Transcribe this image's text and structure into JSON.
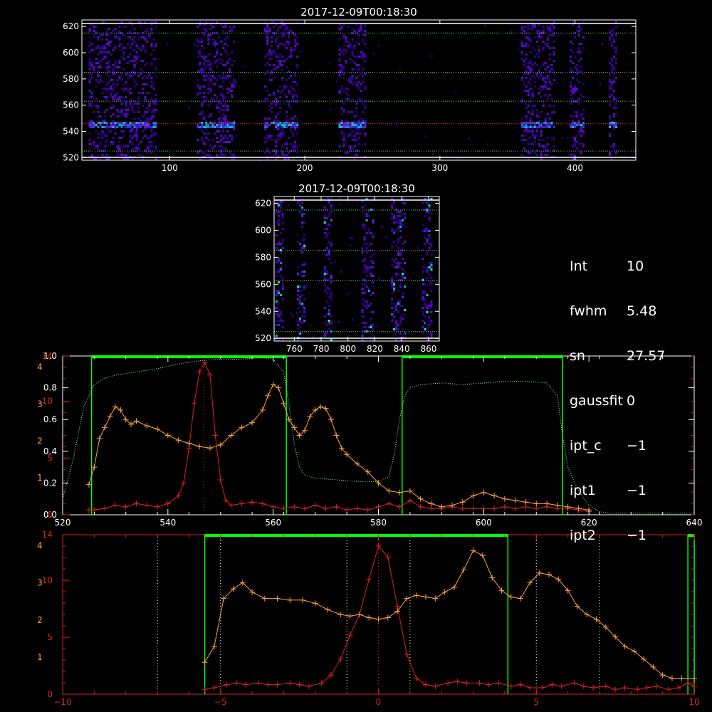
{
  "params": [
    {
      "key": "Int",
      "value": "10"
    },
    {
      "key": "fwhm",
      "value": "5.48"
    },
    {
      "key": "sn",
      "value": "27.57"
    },
    {
      "key": "gaussfit",
      "value": "0"
    },
    {
      "key": "ipt_c",
      "value": "−1"
    },
    {
      "key": "ipt1",
      "value": "−1"
    },
    {
      "key": "ipt2",
      "value": "−1"
    }
  ],
  "colors": {
    "red": "#e02020",
    "orange": "#ffa040",
    "green": "#00ff00",
    "white": "#ffffff",
    "heat_low": "#3a00a0",
    "heat_high": "#00ffc0"
  },
  "chart_data": [
    {
      "type": "heatmap",
      "title": "2017-12-09T00:18:30",
      "xlim": [
        35,
        445
      ],
      "ylim": [
        518,
        625
      ],
      "xticks": [
        100,
        200,
        300,
        400
      ],
      "yticks": [
        520,
        540,
        560,
        580,
        600,
        620
      ],
      "columns": [
        [
          40,
          90
        ],
        [
          120,
          148
        ],
        [
          170,
          195
        ],
        [
          225,
          245
        ],
        [
          360,
          385
        ],
        [
          396,
          406
        ],
        [
          425,
          430
        ]
      ],
      "bright_row": 546,
      "dotted_lines": [
        525,
        546,
        563,
        585,
        615
      ]
    },
    {
      "type": "heatmap",
      "title": "2017-12-09T00:18:30",
      "xlim": [
        745,
        868
      ],
      "ylim": [
        518,
        625
      ],
      "xticks": [
        760,
        780,
        800,
        820,
        840,
        860
      ],
      "yticks": [
        520,
        540,
        560,
        580,
        600,
        620
      ],
      "columns": [
        [
          746,
          752
        ],
        [
          762,
          768
        ],
        [
          782,
          788
        ],
        [
          810,
          818
        ],
        [
          832,
          842
        ],
        [
          855,
          862
        ]
      ],
      "dotted_lines": [
        525,
        563,
        585,
        615
      ]
    },
    {
      "type": "line",
      "xlim": [
        520,
        640
      ],
      "ylim": [
        0,
        1.0
      ],
      "xticks": [
        520,
        540,
        560,
        580,
        600,
        620,
        640
      ],
      "yticks_left_white": [
        0.0,
        0.2,
        0.4,
        0.6,
        0.8,
        1.0
      ],
      "yticks_left_red": [
        0,
        5,
        10,
        14
      ],
      "yticks_left_orange": [
        1,
        2,
        3,
        4
      ],
      "green_boxes": [
        [
          525.5,
          562.5
        ],
        [
          584.5,
          615.0
        ]
      ],
      "center_line": 546.8,
      "series": [
        {
          "color": "#e02020",
          "x": [
            525,
            526,
            528,
            530,
            532,
            534,
            536,
            538,
            540,
            542,
            543,
            544,
            545,
            546,
            547,
            548,
            549,
            550,
            551,
            552,
            554,
            556,
            558,
            560,
            562,
            564,
            566,
            568,
            570,
            572,
            574,
            576,
            578,
            580,
            582,
            584,
            586,
            588,
            590,
            592,
            594,
            596,
            598,
            600,
            602,
            604,
            606,
            608,
            610,
            612,
            614,
            616,
            618,
            620
          ],
          "y": [
            0.03,
            0.03,
            0.04,
            0.06,
            0.05,
            0.07,
            0.06,
            0.05,
            0.07,
            0.12,
            0.2,
            0.42,
            0.7,
            0.9,
            0.96,
            0.88,
            0.5,
            0.22,
            0.09,
            0.06,
            0.07,
            0.08,
            0.07,
            0.05,
            0.04,
            0.05,
            0.04,
            0.06,
            0.04,
            0.05,
            0.03,
            0.04,
            0.03,
            0.05,
            0.07,
            0.05,
            0.09,
            0.05,
            0.04,
            0.04,
            0.05,
            0.04,
            0.04,
            0.04,
            0.04,
            0.05,
            0.04,
            0.05,
            0.04,
            0.05,
            0.04,
            0.04,
            0.03,
            0.02
          ]
        },
        {
          "color": "#ffa040",
          "x": [
            525,
            526,
            527,
            528,
            529,
            530,
            531,
            532,
            533,
            534,
            536,
            538,
            540,
            542,
            544,
            546,
            548,
            550,
            552,
            554,
            556,
            558,
            559,
            560,
            561,
            562,
            563,
            564,
            565,
            566,
            567,
            568,
            569,
            570,
            571,
            572,
            573,
            574,
            576,
            578,
            580,
            582,
            584,
            586,
            588,
            590,
            592,
            594,
            596,
            598,
            600,
            602,
            604,
            606,
            608,
            610,
            612,
            614,
            616,
            618,
            620
          ],
          "y": [
            0.19,
            0.3,
            0.48,
            0.55,
            0.62,
            0.68,
            0.66,
            0.6,
            0.57,
            0.59,
            0.56,
            0.54,
            0.5,
            0.47,
            0.45,
            0.43,
            0.42,
            0.44,
            0.5,
            0.55,
            0.58,
            0.66,
            0.75,
            0.82,
            0.8,
            0.7,
            0.6,
            0.55,
            0.5,
            0.53,
            0.62,
            0.66,
            0.68,
            0.67,
            0.6,
            0.5,
            0.42,
            0.38,
            0.32,
            0.27,
            0.2,
            0.15,
            0.14,
            0.15,
            0.1,
            0.07,
            0.05,
            0.06,
            0.08,
            0.12,
            0.14,
            0.12,
            0.1,
            0.09,
            0.08,
            0.07,
            0.07,
            0.06,
            0.05,
            0.04,
            0.03
          ]
        },
        {
          "color": "#99ff99",
          "x": [
            520,
            522,
            524,
            526,
            528,
            530,
            534,
            538,
            542,
            546,
            550,
            554,
            558,
            560,
            562,
            563,
            564,
            565,
            566,
            568,
            572,
            576,
            580,
            582,
            583,
            584,
            585,
            586,
            588,
            592,
            596,
            600,
            604,
            608,
            612,
            614,
            615,
            616,
            618,
            620,
            622,
            624,
            628,
            632,
            636,
            640
          ],
          "y": [
            0.1,
            0.35,
            0.68,
            0.82,
            0.86,
            0.88,
            0.9,
            0.92,
            0.95,
            0.97,
            0.98,
            0.98,
            0.99,
            0.98,
            0.9,
            0.7,
            0.45,
            0.3,
            0.25,
            0.23,
            0.22,
            0.21,
            0.21,
            0.24,
            0.38,
            0.6,
            0.75,
            0.8,
            0.82,
            0.83,
            0.82,
            0.83,
            0.84,
            0.84,
            0.83,
            0.75,
            0.5,
            0.3,
            0.15,
            0.06,
            0.02,
            0.01,
            0.01,
            0.01,
            0.01,
            0.01
          ]
        }
      ]
    },
    {
      "type": "line",
      "xlim": [
        -10,
        10
      ],
      "ylim": [
        0,
        1.0
      ],
      "xticks": [
        -10,
        -5,
        0,
        5,
        10
      ],
      "yticks_left_red": [
        0,
        5,
        10,
        14
      ],
      "yticks_left_orange": [
        1,
        2,
        3,
        4
      ],
      "green_boxes": [
        [
          -5.5,
          4.1
        ],
        [
          9.8,
          10
        ]
      ],
      "dotted_lines": [
        -7.0,
        -5.0,
        -1.0,
        0.0,
        1.0,
        5.0,
        7.0
      ],
      "series": [
        {
          "color": "#e02020",
          "x": [
            -5.5,
            -5.2,
            -4.8,
            -4.5,
            -4.2,
            -3.8,
            -3.5,
            -3.2,
            -2.8,
            -2.5,
            -2.2,
            -1.8,
            -1.5,
            -1.2,
            -0.9,
            -0.6,
            -0.3,
            0.0,
            0.3,
            0.6,
            0.9,
            1.2,
            1.5,
            1.8,
            2.2,
            2.5,
            2.8,
            3.2,
            3.5,
            3.8,
            4.2,
            4.5,
            4.8,
            5.2,
            5.5,
            5.8,
            6.2,
            6.5,
            6.8,
            7.2,
            7.5,
            7.8,
            8.2,
            8.5,
            8.8,
            9.2,
            9.5,
            9.8,
            10.0
          ],
          "y": [
            0.03,
            0.04,
            0.06,
            0.07,
            0.06,
            0.07,
            0.06,
            0.06,
            0.07,
            0.06,
            0.05,
            0.07,
            0.12,
            0.22,
            0.37,
            0.5,
            0.72,
            0.93,
            0.86,
            0.55,
            0.25,
            0.1,
            0.06,
            0.05,
            0.07,
            0.08,
            0.07,
            0.07,
            0.06,
            0.07,
            0.05,
            0.06,
            0.04,
            0.04,
            0.06,
            0.05,
            0.07,
            0.05,
            0.04,
            0.05,
            0.03,
            0.04,
            0.03,
            0.04,
            0.05,
            0.03,
            0.04,
            0.07,
            0.05
          ]
        },
        {
          "color": "#ffa040",
          "x": [
            -5.5,
            -5.2,
            -4.9,
            -4.6,
            -4.3,
            -4.0,
            -3.6,
            -3.2,
            -2.8,
            -2.4,
            -2.0,
            -1.6,
            -1.2,
            -0.9,
            -0.6,
            -0.3,
            0.0,
            0.3,
            0.6,
            0.9,
            1.2,
            1.5,
            1.8,
            2.1,
            2.4,
            2.7,
            3.0,
            3.3,
            3.6,
            3.9,
            4.2,
            4.5,
            4.8,
            5.1,
            5.4,
            5.7,
            6.0,
            6.3,
            6.6,
            6.9,
            7.2,
            7.5,
            7.8,
            8.1,
            8.4,
            8.7,
            9.0,
            9.3,
            9.6,
            10.0
          ],
          "y": [
            0.2,
            0.3,
            0.6,
            0.66,
            0.7,
            0.64,
            0.6,
            0.6,
            0.59,
            0.59,
            0.57,
            0.53,
            0.5,
            0.49,
            0.5,
            0.48,
            0.47,
            0.48,
            0.52,
            0.6,
            0.62,
            0.61,
            0.6,
            0.64,
            0.67,
            0.78,
            0.9,
            0.87,
            0.73,
            0.65,
            0.61,
            0.6,
            0.7,
            0.76,
            0.75,
            0.72,
            0.65,
            0.55,
            0.5,
            0.47,
            0.42,
            0.36,
            0.3,
            0.27,
            0.22,
            0.17,
            0.12,
            0.1,
            0.1,
            0.1
          ]
        }
      ]
    }
  ]
}
